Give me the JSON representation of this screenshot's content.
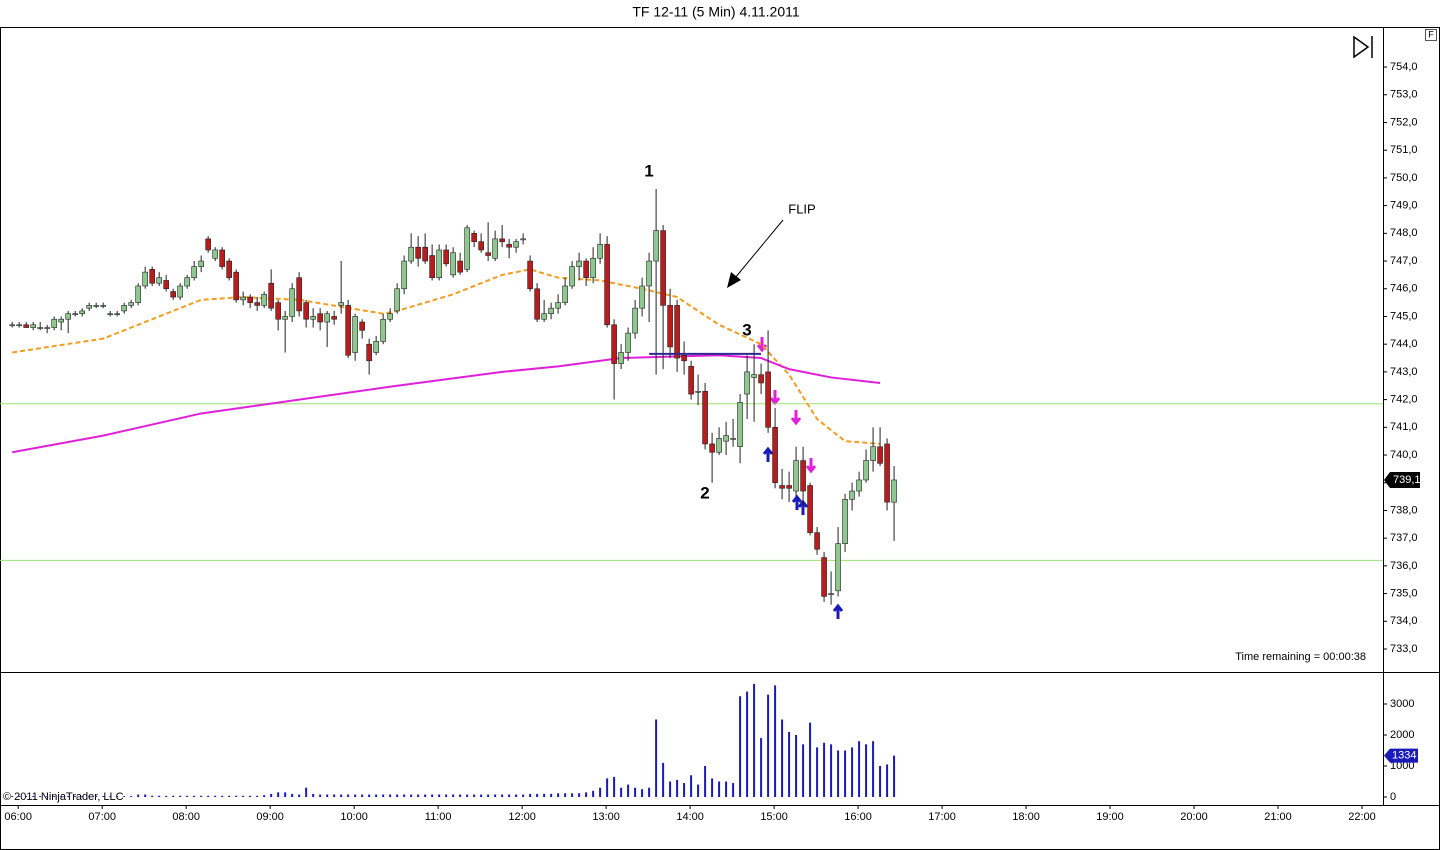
{
  "title": "TF 12-11 (5 Min)  4.11.2011",
  "time_remaining": "Time remaining = 00:00:38",
  "copyright": "© 2011 NinjaTrader, LLC",
  "panel_button": "F",
  "chart_data": [
    {
      "type": "candlestick",
      "annotations": [
        "1",
        "2",
        "3",
        "FLIP"
      ],
      "up_color": "#8fc88f",
      "down_color": "#b81c1c",
      "wick_color": "#222222",
      "x": [
        "06:00",
        "06:05",
        "06:10",
        "06:15",
        "06:20",
        "06:25",
        "06:30",
        "06:35",
        "06:40",
        "06:45",
        "06:50",
        "06:55",
        "07:00",
        "07:05",
        "07:10",
        "07:15",
        "07:20",
        "07:25",
        "07:30",
        "07:35",
        "07:40",
        "07:45",
        "07:50",
        "07:55",
        "08:00",
        "08:05",
        "08:10",
        "08:15",
        "08:20",
        "08:25",
        "08:30",
        "08:35",
        "08:40",
        "08:45",
        "08:50",
        "08:55",
        "09:00",
        "09:05",
        "09:10",
        "09:15",
        "09:20",
        "09:25",
        "09:30",
        "09:35",
        "09:40",
        "09:45",
        "09:50",
        "09:55",
        "10:00",
        "10:05",
        "10:10",
        "10:15",
        "10:20",
        "10:25",
        "10:30",
        "10:35",
        "10:40",
        "10:45",
        "10:50",
        "10:55",
        "11:00",
        "11:05",
        "11:10",
        "11:15",
        "11:20",
        "11:25",
        "11:30",
        "11:35",
        "11:40",
        "11:45",
        "11:50",
        "11:55",
        "12:00",
        "12:05",
        "12:10",
        "12:15",
        "12:20",
        "12:25",
        "12:30",
        "12:35",
        "12:40",
        "12:45",
        "12:50",
        "12:55",
        "13:00",
        "13:05",
        "13:10",
        "13:15",
        "13:20",
        "13:25",
        "13:30",
        "13:35",
        "13:40",
        "13:45",
        "13:50",
        "13:55",
        "14:00",
        "14:05",
        "14:10",
        "14:15",
        "14:20",
        "14:25",
        "14:30",
        "14:35",
        "14:40",
        "14:45",
        "14:50",
        "14:55",
        "15:00",
        "15:05",
        "15:10",
        "15:15",
        "15:20",
        "15:25",
        "15:30",
        "15:35",
        "15:40",
        "15:45",
        "15:50",
        "15:55",
        "16:00",
        "16:05",
        "16:10",
        "16:15",
        "16:20",
        "16:25",
        "16:30"
      ],
      "ohlc": [
        [
          744.7,
          744.8,
          744.6,
          744.7
        ],
        [
          744.7,
          744.8,
          744.6,
          744.7
        ],
        [
          744.7,
          744.8,
          744.6,
          744.6
        ],
        [
          744.6,
          744.8,
          744.5,
          744.7
        ],
        [
          744.6,
          744.8,
          744.5,
          744.6
        ],
        [
          744.6,
          744.7,
          744.4,
          744.6
        ],
        [
          744.6,
          745.0,
          744.5,
          744.9
        ],
        [
          744.8,
          745.0,
          744.5,
          744.9
        ],
        [
          744.9,
          745.2,
          744.4,
          745.1
        ],
        [
          745.1,
          745.2,
          745.0,
          745.1
        ],
        [
          745.1,
          745.3,
          745.0,
          745.2
        ],
        [
          745.3,
          745.5,
          745.2,
          745.4
        ],
        [
          745.4,
          745.5,
          745.3,
          745.4
        ],
        [
          745.4,
          745.5,
          745.3,
          745.4
        ],
        [
          745.1,
          745.2,
          745.0,
          745.1
        ],
        [
          745.1,
          745.2,
          745.0,
          745.1
        ],
        [
          745.2,
          745.5,
          745.1,
          745.4
        ],
        [
          745.4,
          745.6,
          745.3,
          745.5
        ],
        [
          745.5,
          746.2,
          745.4,
          746.1
        ],
        [
          746.1,
          746.8,
          746.0,
          746.6
        ],
        [
          746.7,
          746.8,
          746.1,
          746.2
        ],
        [
          746.2,
          746.6,
          746.1,
          746.4
        ],
        [
          746.3,
          746.5,
          745.9,
          746.0
        ],
        [
          745.9,
          746.0,
          745.6,
          745.7
        ],
        [
          745.7,
          746.2,
          745.6,
          746.1
        ],
        [
          746.1,
          746.5,
          746.0,
          746.4
        ],
        [
          746.4,
          747.0,
          746.3,
          746.8
        ],
        [
          746.8,
          747.2,
          746.6,
          747.0
        ],
        [
          747.8,
          747.9,
          747.3,
          747.4
        ],
        [
          747.1,
          747.5,
          747.0,
          747.4
        ],
        [
          747.4,
          747.5,
          746.7,
          746.8
        ],
        [
          747.0,
          747.1,
          746.3,
          746.4
        ],
        [
          746.6,
          746.7,
          745.5,
          745.6
        ],
        [
          745.6,
          745.9,
          745.4,
          745.7
        ],
        [
          745.7,
          745.8,
          745.3,
          745.5
        ],
        [
          745.5,
          745.7,
          745.2,
          745.4
        ],
        [
          745.4,
          745.9,
          745.3,
          745.8
        ],
        [
          746.2,
          746.7,
          745.2,
          745.3
        ],
        [
          745.5,
          745.6,
          744.5,
          744.9
        ],
        [
          744.9,
          745.2,
          743.7,
          745.0
        ],
        [
          745.0,
          746.2,
          744.8,
          746.0
        ],
        [
          746.4,
          746.6,
          745.0,
          745.2
        ],
        [
          745.5,
          745.6,
          744.6,
          744.9
        ],
        [
          744.9,
          745.3,
          744.6,
          745.0
        ],
        [
          745.1,
          745.3,
          744.5,
          744.8
        ],
        [
          744.8,
          745.2,
          743.9,
          745.1
        ],
        [
          745.0,
          745.2,
          744.7,
          744.9
        ],
        [
          745.4,
          747.0,
          745.1,
          745.5
        ],
        [
          745.4,
          745.6,
          743.5,
          743.6
        ],
        [
          743.7,
          745.1,
          743.4,
          745.0
        ],
        [
          744.8,
          744.9,
          744.2,
          744.5
        ],
        [
          744.0,
          744.2,
          742.9,
          743.4
        ],
        [
          743.7,
          744.3,
          743.6,
          744.1
        ],
        [
          744.1,
          745.1,
          744.0,
          744.9
        ],
        [
          744.9,
          745.3,
          744.8,
          745.1
        ],
        [
          745.2,
          746.2,
          745.1,
          746.0
        ],
        [
          746.0,
          747.2,
          745.8,
          747.0
        ],
        [
          747.0,
          748.0,
          746.9,
          747.5
        ],
        [
          747.5,
          747.9,
          746.8,
          747.1
        ],
        [
          747.5,
          748.0,
          746.9,
          747.0
        ],
        [
          747.2,
          747.6,
          746.3,
          746.4
        ],
        [
          746.4,
          747.6,
          746.3,
          747.4
        ],
        [
          747.4,
          747.6,
          746.8,
          746.9
        ],
        [
          746.5,
          747.5,
          746.4,
          747.3
        ],
        [
          747.0,
          747.3,
          746.5,
          746.6
        ],
        [
          746.7,
          748.3,
          746.6,
          748.2
        ],
        [
          748.0,
          748.1,
          747.5,
          747.7
        ],
        [
          747.7,
          748.0,
          747.3,
          747.4
        ],
        [
          747.3,
          748.4,
          747.0,
          747.2
        ],
        [
          747.1,
          748.1,
          747.0,
          747.8
        ],
        [
          747.8,
          748.3,
          747.5,
          747.7
        ],
        [
          747.6,
          747.8,
          747.1,
          747.5
        ],
        [
          747.5,
          747.8,
          747.3,
          747.7
        ],
        [
          747.8,
          748.0,
          747.6,
          747.8
        ],
        [
          747.0,
          747.2,
          745.9,
          746.0
        ],
        [
          746.0,
          746.2,
          744.8,
          744.9
        ],
        [
          744.9,
          745.6,
          744.8,
          745.1
        ],
        [
          745.1,
          745.5,
          744.9,
          745.3
        ],
        [
          745.3,
          745.8,
          745.1,
          745.5
        ],
        [
          745.5,
          746.4,
          745.4,
          746.1
        ],
        [
          746.1,
          747.0,
          746.0,
          746.8
        ],
        [
          746.8,
          747.3,
          746.3,
          747.0
        ],
        [
          747.0,
          747.1,
          746.1,
          746.4
        ],
        [
          746.4,
          747.5,
          746.2,
          747.1
        ],
        [
          747.1,
          748.0,
          746.9,
          747.6
        ],
        [
          747.6,
          747.9,
          744.6,
          744.7
        ],
        [
          744.7,
          744.9,
          742.0,
          743.3
        ],
        [
          743.3,
          744.0,
          743.1,
          743.7
        ],
        [
          743.7,
          744.6,
          743.4,
          744.4
        ],
        [
          744.4,
          745.6,
          744.2,
          745.3
        ],
        [
          745.3,
          746.4,
          745.0,
          746.1
        ],
        [
          746.1,
          747.3,
          744.8,
          747.0
        ],
        [
          747.0,
          749.6,
          742.9,
          748.1
        ],
        [
          748.1,
          748.3,
          743.1,
          745.4
        ],
        [
          745.4,
          746.0,
          743.5,
          743.9
        ],
        [
          745.4,
          745.6,
          743.0,
          743.5
        ],
        [
          743.6,
          744.1,
          742.9,
          743.4
        ],
        [
          743.2,
          743.4,
          742.0,
          742.2
        ],
        [
          742.3,
          742.9,
          741.8,
          742.3
        ],
        [
          742.3,
          742.6,
          740.2,
          740.4
        ],
        [
          740.4,
          740.8,
          739.0,
          740.1
        ],
        [
          740.1,
          741.0,
          740.0,
          740.6
        ],
        [
          740.5,
          741.2,
          740.0,
          740.7
        ],
        [
          740.6,
          741.3,
          740.3,
          740.6
        ],
        [
          740.3,
          742.2,
          739.7,
          741.9
        ],
        [
          742.2,
          743.6,
          741.3,
          743.0
        ],
        [
          742.8,
          744.0,
          741.2,
          742.9
        ],
        [
          742.9,
          743.3,
          742.2,
          742.6
        ],
        [
          743.0,
          744.5,
          740.8,
          741.0
        ],
        [
          741.0,
          741.7,
          738.8,
          739.0
        ],
        [
          738.9,
          739.5,
          738.4,
          738.8
        ],
        [
          738.9,
          739.4,
          738.3,
          738.8
        ],
        [
          738.7,
          740.3,
          738.5,
          739.8
        ],
        [
          739.8,
          740.3,
          738.2,
          738.7
        ],
        [
          738.9,
          739.0,
          737.1,
          737.2
        ],
        [
          737.2,
          737.4,
          736.4,
          736.6
        ],
        [
          736.3,
          736.5,
          734.7,
          734.9
        ],
        [
          735.0,
          735.8,
          734.6,
          735.0
        ],
        [
          735.1,
          737.4,
          734.9,
          736.8
        ],
        [
          736.8,
          738.6,
          736.5,
          738.4
        ],
        [
          738.4,
          739.0,
          738.0,
          738.7
        ],
        [
          738.7,
          739.4,
          738.5,
          739.1
        ],
        [
          739.1,
          740.2,
          739.0,
          739.8
        ],
        [
          739.8,
          741.0,
          739.4,
          740.3
        ],
        [
          740.3,
          741.0,
          739.6,
          739.7
        ],
        [
          740.4,
          740.6,
          738.0,
          738.3
        ],
        [
          738.3,
          739.6,
          736.9,
          739.1
        ]
      ],
      "overlays": [
        {
          "color": "#f39c1f",
          "dash": true,
          "x": [
            "06:00",
            "07:05",
            "08:15",
            "08:45",
            "09:25",
            "10:25",
            "10:35",
            "11:15",
            "11:50",
            "12:10",
            "12:30",
            "13:00",
            "13:30",
            "13:55",
            "14:25",
            "14:55",
            "15:15",
            "15:35",
            "15:55",
            "16:20"
          ],
          "values": [
            743.7,
            744.2,
            745.6,
            745.7,
            745.6,
            745.1,
            745.2,
            745.8,
            746.5,
            746.7,
            746.4,
            746.3,
            746.0,
            745.7,
            744.7,
            744.0,
            742.9,
            741.3,
            740.5,
            740.4
          ]
        },
        {
          "color": "#e020d8",
          "dash": false,
          "x": [
            "06:00",
            "07:05",
            "08:15",
            "09:25",
            "10:35",
            "11:50",
            "12:30",
            "13:15",
            "14:25",
            "14:55",
            "15:15",
            "15:45",
            "16:20"
          ],
          "values": [
            740.1,
            740.7,
            741.5,
            742.0,
            742.5,
            743.0,
            743.2,
            743.5,
            743.6,
            743.5,
            743.1,
            742.8,
            742.6
          ]
        }
      ],
      "hlines": [
        {
          "value": 741.85,
          "color": "#9fe070"
        },
        {
          "value": 736.2,
          "color": "#9fe070"
        }
      ],
      "segments": [
        {
          "value": 743.65,
          "x": [
            "13:35",
            "14:55"
          ],
          "color": "#2b2b8f"
        }
      ],
      "last_price": {
        "value": 739.1,
        "label": "739,1"
      },
      "xlim": [
        "05:47",
        "22:15"
      ],
      "xticks": [
        "06:00",
        "07:00",
        "08:00",
        "09:00",
        "10:00",
        "11:00",
        "12:00",
        "13:00",
        "14:00",
        "15:00",
        "16:00",
        "17:00",
        "18:00",
        "19:00",
        "20:00",
        "21:00",
        "22:00"
      ],
      "ylim": [
        732.17,
        755.41
      ],
      "yticks": [
        {
          "value": 733,
          "label": "733,0"
        },
        {
          "value": 734,
          "label": "734,0"
        },
        {
          "value": 735,
          "label": "735,0"
        },
        {
          "value": 736,
          "label": "736,0"
        },
        {
          "value": 737,
          "label": "737,0"
        },
        {
          "value": 738,
          "label": "738,0"
        },
        {
          "value": 739,
          "label": "739,0"
        },
        {
          "value": 740,
          "label": "740,0"
        },
        {
          "value": 741,
          "label": "741,0"
        },
        {
          "value": 742,
          "label": "742,0"
        },
        {
          "value": 743,
          "label": "743,0"
        },
        {
          "value": 744,
          "label": "744,0"
        },
        {
          "value": 745,
          "label": "745,0"
        },
        {
          "value": 746,
          "label": "746,0"
        },
        {
          "value": 747,
          "label": "747,0"
        },
        {
          "value": 748,
          "label": "748,0"
        },
        {
          "value": 749,
          "label": "749,0"
        },
        {
          "value": 750,
          "label": "750,0"
        },
        {
          "value": 751,
          "label": "751,0"
        },
        {
          "value": 752,
          "label": "752,0"
        },
        {
          "value": 753,
          "label": "753,0"
        },
        {
          "value": 754,
          "label": "754,0"
        }
      ]
    },
    {
      "type": "bar",
      "color": "#1a1ab8",
      "values": [
        30,
        30,
        30,
        30,
        30,
        30,
        30,
        30,
        30,
        30,
        30,
        30,
        30,
        30,
        30,
        30,
        30,
        30,
        80,
        80,
        40,
        40,
        40,
        40,
        40,
        40,
        40,
        40,
        40,
        40,
        40,
        40,
        40,
        40,
        40,
        40,
        60,
        100,
        150,
        150,
        100,
        80,
        300,
        100,
        80,
        80,
        80,
        80,
        80,
        80,
        80,
        80,
        80,
        80,
        80,
        80,
        80,
        80,
        80,
        80,
        80,
        80,
        80,
        80,
        80,
        80,
        80,
        80,
        80,
        80,
        80,
        80,
        80,
        80,
        100,
        100,
        100,
        100,
        120,
        120,
        120,
        120,
        150,
        200,
        300,
        600,
        650,
        300,
        400,
        300,
        250,
        300,
        2500,
        1100,
        500,
        550,
        450,
        700,
        400,
        1000,
        600,
        500,
        500,
        450,
        3250,
        3400,
        3650,
        1900,
        3300,
        3600,
        2500,
        2100,
        2000,
        1700,
        2400,
        1600,
        1750,
        1700,
        1500,
        1500,
        1600,
        1800,
        1700,
        1800,
        1000,
        1050,
        1334
      ],
      "last_value": 1334,
      "ylim": [
        -258,
        4032
      ],
      "yticks": [
        0,
        1000,
        2000,
        3000
      ]
    }
  ]
}
